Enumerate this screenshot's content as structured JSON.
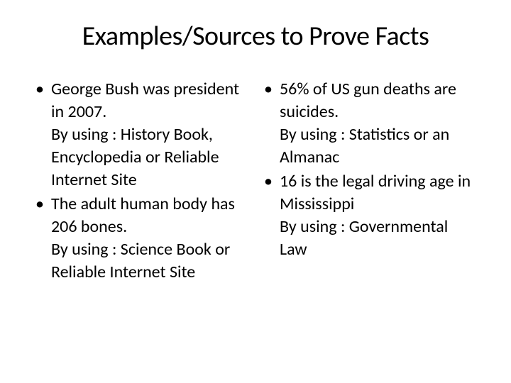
{
  "slide": {
    "title": "Examples/Sources to Prove Facts",
    "title_color": "#000000",
    "title_fontsize": 38,
    "body_fontsize": 24,
    "body_color": "#000000",
    "background_color": "#ffffff",
    "left_column": [
      {
        "fact": "George Bush was president in 2007.",
        "source": "By using : History Book, Encyclopedia or Reliable Internet Site"
      },
      {
        "fact": "The adult human body has 206 bones.",
        "source": "By using : Science Book or Reliable Internet Site"
      }
    ],
    "right_column": [
      {
        "fact": "56% of US gun deaths are suicides.",
        "source": "By using : Statistics or an Almanac"
      },
      {
        "fact": "16 is the legal driving age in Mississippi",
        "source": "By using : Governmental Law"
      }
    ]
  }
}
